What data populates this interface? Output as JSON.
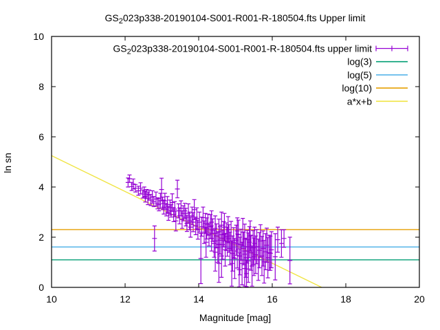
{
  "title": {
    "prefix": "GS",
    "subscript": "2",
    "rest": "023p338-20190104-S001-R001-R-180504.fts Upper limit"
  },
  "axes": {
    "x_label": "Magnitude [mag]",
    "y_label": "ln sn"
  },
  "legend": {
    "entries": [
      {
        "prefix": "GS",
        "subscript": "2",
        "rest": "023p338-20190104-S001-R001-R-180504.fts upper limit",
        "type": "errorbar",
        "color": "#9400D3"
      },
      {
        "label": "log(3)",
        "type": "line",
        "color": "#009E73"
      },
      {
        "label": "log(5)",
        "type": "line",
        "color": "#56B4E9"
      },
      {
        "label": "log(10)",
        "type": "line",
        "color": "#E69F00"
      },
      {
        "label": "a*x+b",
        "type": "line",
        "color": "#F0E442"
      }
    ]
  },
  "chart_data": {
    "type": "scatter",
    "title": "GS_2023p338-20190104-S001-R001-R-180504.fts Upper limit",
    "xlabel": "Magnitude [mag]",
    "ylabel": "ln sn",
    "xlim": [
      10,
      20
    ],
    "ylim": [
      0,
      10
    ],
    "x_ticks": [
      10,
      12,
      14,
      16,
      18,
      20
    ],
    "y_ticks": [
      0,
      2,
      4,
      6,
      8,
      10
    ],
    "grid": false,
    "legend_position": "top-right-inside",
    "hlines": [
      {
        "label": "log(3)",
        "y": 1.0986,
        "color": "#009E73"
      },
      {
        "label": "log(5)",
        "y": 1.6094,
        "color": "#56B4E9"
      },
      {
        "label": "log(10)",
        "y": 2.3026,
        "color": "#E69F00"
      }
    ],
    "fit_line": {
      "label": "a*x+b",
      "a": -0.7147,
      "b": 12.397,
      "color": "#F0E442",
      "clip_y_min": 0
    },
    "series": {
      "name": "GS_2023p338-20190104-S001-R001-R-180504.fts upper limit",
      "color": "#9400D3",
      "marker": "plus-with-errorbars",
      "points_format": [
        "magnitude",
        "ln_sn",
        "err"
      ],
      "points": [
        [
          12.08,
          4.18,
          0.18
        ],
        [
          12.12,
          4.33,
          0.15
        ],
        [
          12.18,
          4.02,
          0.16
        ],
        [
          12.22,
          4.12,
          0.2
        ],
        [
          12.28,
          3.95,
          0.15
        ],
        [
          12.36,
          3.85,
          0.18
        ],
        [
          12.42,
          3.95,
          0.22
        ],
        [
          12.48,
          3.72,
          0.16
        ],
        [
          12.52,
          3.8,
          0.2
        ],
        [
          12.55,
          3.62,
          0.22
        ],
        [
          12.58,
          3.72,
          0.18
        ],
        [
          12.62,
          3.55,
          0.25
        ],
        [
          12.65,
          3.68,
          0.2
        ],
        [
          12.7,
          3.48,
          0.22
        ],
        [
          12.74,
          3.6,
          0.25
        ],
        [
          12.78,
          3.42,
          0.2
        ],
        [
          12.8,
          1.95,
          0.5
        ],
        [
          12.84,
          3.52,
          0.28
        ],
        [
          12.88,
          3.35,
          0.22
        ],
        [
          12.92,
          3.3,
          0.25
        ],
        [
          12.96,
          3.45,
          0.3
        ],
        [
          12.99,
          3.9,
          0.45
        ],
        [
          13.02,
          3.35,
          0.25
        ],
        [
          13.05,
          3.2,
          0.28
        ],
        [
          13.08,
          3.45,
          0.3
        ],
        [
          13.12,
          3.1,
          0.25
        ],
        [
          13.15,
          3.3,
          0.32
        ],
        [
          13.18,
          2.95,
          0.28
        ],
        [
          13.22,
          3.18,
          0.3
        ],
        [
          13.25,
          3.05,
          0.25
        ],
        [
          13.28,
          3.38,
          0.35
        ],
        [
          13.32,
          2.9,
          0.28
        ],
        [
          13.35,
          3.12,
          0.3
        ],
        [
          13.38,
          2.65,
          0.4
        ],
        [
          13.42,
          3.92,
          0.35
        ],
        [
          13.45,
          3.05,
          0.28
        ],
        [
          13.48,
          2.85,
          0.32
        ],
        [
          13.52,
          3.15,
          0.3
        ],
        [
          13.55,
          2.7,
          0.35
        ],
        [
          13.58,
          2.95,
          0.3
        ],
        [
          13.62,
          3.05,
          0.3
        ],
        [
          13.65,
          2.8,
          0.35
        ],
        [
          13.68,
          2.55,
          0.32
        ],
        [
          13.72,
          2.95,
          0.38
        ],
        [
          13.75,
          2.65,
          0.35
        ],
        [
          13.78,
          2.4,
          0.4
        ],
        [
          13.82,
          2.85,
          0.35
        ],
        [
          13.85,
          2.6,
          0.38
        ],
        [
          13.88,
          3.1,
          0.4
        ],
        [
          13.92,
          2.45,
          0.35
        ],
        [
          13.95,
          2.75,
          0.42
        ],
        [
          13.98,
          2.3,
          0.38
        ],
        [
          14.02,
          2.6,
          0.4
        ],
        [
          14.06,
          1.15,
          1.0
        ],
        [
          14.08,
          2.42,
          0.38
        ],
        [
          14.12,
          2.78,
          0.42
        ],
        [
          14.15,
          2.2,
          0.45
        ],
        [
          14.18,
          2.55,
          0.4
        ],
        [
          14.2,
          1.8,
          0.6
        ],
        [
          14.22,
          2.35,
          0.42
        ],
        [
          14.25,
          2.5,
          0.42
        ],
        [
          14.28,
          2.1,
          0.45
        ],
        [
          14.32,
          2.42,
          0.48
        ],
        [
          14.35,
          1.95,
          0.5
        ],
        [
          14.38,
          2.28,
          0.45
        ],
        [
          14.42,
          1.75,
          0.55
        ],
        [
          14.45,
          2.35,
          0.5
        ],
        [
          14.48,
          2.05,
          0.48
        ],
        [
          14.52,
          1.6,
          0.6
        ],
        [
          14.55,
          2.22,
          0.5
        ],
        [
          14.58,
          1.88,
          0.55
        ],
        [
          14.62,
          2.48,
          0.52
        ],
        [
          14.65,
          1.7,
          0.58
        ],
        [
          14.68,
          2.12,
          0.5
        ],
        [
          14.72,
          1.5,
          0.65
        ],
        [
          14.75,
          2.02,
          0.55
        ],
        [
          14.78,
          1.82,
          0.58
        ],
        [
          14.8,
          2.3,
          0.52
        ],
        [
          14.62,
          1.25,
          0.85
        ],
        [
          14.45,
          1.4,
          0.75
        ],
        [
          14.35,
          2.6,
          0.45
        ],
        [
          14.7,
          2.4,
          0.55
        ],
        [
          14.55,
          0.95,
          0.75
        ],
        [
          14.82,
          1.95,
          0.55
        ],
        [
          14.85,
          1.55,
          0.65
        ],
        [
          14.88,
          2.05,
          0.58
        ],
        [
          14.92,
          1.35,
          0.7
        ],
        [
          14.95,
          1.78,
          0.6
        ],
        [
          14.98,
          1.15,
          0.8
        ],
        [
          15.02,
          1.88,
          0.6
        ],
        [
          15.05,
          1.45,
          0.68
        ],
        [
          15.08,
          2.1,
          0.58
        ],
        [
          15.12,
          1.25,
          0.75
        ],
        [
          15.15,
          1.7,
          0.62
        ],
        [
          15.18,
          0.95,
          0.85
        ],
        [
          15.22,
          1.55,
          0.65
        ],
        [
          15.25,
          1.92,
          0.6
        ],
        [
          15.28,
          1.18,
          0.78
        ],
        [
          15.32,
          1.62,
          0.65
        ],
        [
          15.35,
          1.05,
          0.85
        ],
        [
          15.38,
          1.8,
          0.62
        ],
        [
          15.42,
          1.38,
          0.7
        ],
        [
          15.45,
          0.85,
          0.8
        ],
        [
          15.48,
          1.58,
          0.68
        ],
        [
          15.5,
          1.22,
          0.75
        ],
        [
          15.1,
          0.7,
          0.68
        ],
        [
          15.3,
          0.55,
          0.52
        ],
        [
          15.2,
          2.2,
          0.55
        ],
        [
          14.9,
          0.95,
          0.9
        ],
        [
          15.4,
          2.05,
          0.6
        ],
        [
          15.05,
          2.25,
          0.52
        ],
        [
          15.35,
          1.45,
          0.72
        ],
        [
          15.25,
          0.75,
          0.7
        ],
        [
          15.52,
          1.75,
          0.65
        ],
        [
          15.55,
          1.3,
          0.75
        ],
        [
          15.58,
          1.62,
          0.68
        ],
        [
          15.62,
          1.1,
          0.82
        ],
        [
          15.65,
          1.48,
          0.7
        ],
        [
          15.68,
          1.85,
          0.65
        ],
        [
          15.72,
          1.25,
          0.78
        ],
        [
          15.75,
          1.55,
          0.7
        ],
        [
          15.78,
          1.02,
          0.85
        ],
        [
          15.82,
          1.42,
          0.72
        ],
        [
          15.85,
          1.68,
          0.68
        ],
        [
          15.88,
          1.18,
          0.8
        ],
        [
          15.92,
          1.38,
          0.7
        ],
        [
          15.95,
          1.36,
          0.68
        ],
        [
          15.98,
          1.5,
          0.72
        ],
        [
          16.08,
          1.22,
          0.92
        ],
        [
          16.15,
          1.9,
          0.5
        ],
        [
          16.25,
          1.75,
          0.55
        ],
        [
          16.32,
          1.95,
          0.35
        ],
        [
          16.48,
          1.07,
          0.93
        ]
      ]
    }
  },
  "colors": {
    "background": "#ffffff",
    "border": "#000000",
    "series_purple": "#9400D3",
    "log3_green": "#009E73",
    "log5_blue": "#56B4E9",
    "log10_orange": "#E69F00",
    "fit_yellow": "#F0E442"
  }
}
